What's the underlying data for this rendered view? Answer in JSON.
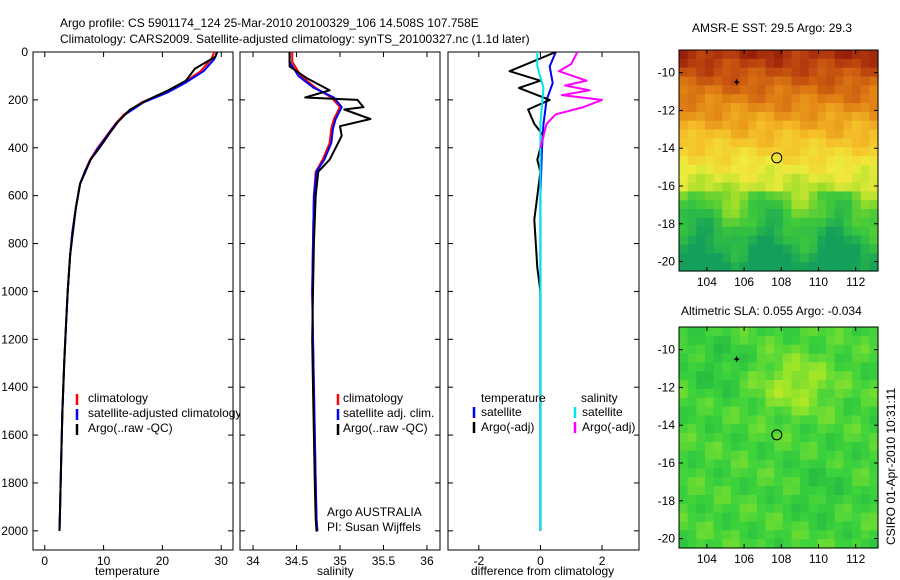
{
  "header": {
    "line1": "Argo profile: CS 5901174_124 25-Mar-2010 20100329_106 14.508S 107.758E",
    "line2": "Climatology: CARS2009. Satellite-adjusted climatology: synTS_20100327.nc (1.1d later)"
  },
  "side_stamp": "CSIRO 01-Apr-2010 10:31:11",
  "colors": {
    "climatology": "#ff0000",
    "satellite": "#0000ff",
    "argo": "#000000",
    "salinity_satellite": "#00e5ee",
    "salinity_argo": "#ff00ff"
  },
  "chart_data": [
    {
      "type": "line",
      "name": "temperature-panel",
      "xlabel": "temperature",
      "ylabel": "",
      "xlim": [
        -2,
        32
      ],
      "ylim": [
        2080,
        0
      ],
      "xticks": [
        0,
        10,
        20,
        30
      ],
      "yticks": [
        0,
        200,
        400,
        600,
        800,
        1000,
        1200,
        1400,
        1600,
        1800,
        2000
      ],
      "legend": [
        "climatology",
        "satellite-adjusted climatology",
        "Argo(..raw -QC)"
      ],
      "series": [
        {
          "name": "climatology",
          "color": "#ff0000",
          "x": [
            28.8,
            28.3,
            26.5,
            23.5,
            20.5,
            16.5,
            13.5,
            12.0,
            10.5,
            9.0,
            7.7,
            6.8,
            6.0,
            5.3,
            4.7,
            4.3,
            3.9,
            3.6,
            3.3,
            3.0,
            2.8,
            2.6,
            2.5
          ],
          "y": [
            0,
            30,
            80,
            130,
            170,
            210,
            260,
            300,
            350,
            400,
            450,
            500,
            550,
            650,
            750,
            850,
            1000,
            1150,
            1300,
            1500,
            1700,
            1900,
            2000
          ]
        },
        {
          "name": "satellite-adjusted climatology",
          "color": "#0000ff",
          "x": [
            29.3,
            28.8,
            27.0,
            23.8,
            20.8,
            16.8,
            13.7,
            12.1,
            10.6,
            9.1,
            7.8,
            6.8,
            6.0,
            5.3,
            4.7,
            4.3,
            3.9,
            3.6,
            3.3,
            3.0,
            2.8,
            2.6,
            2.5
          ],
          "y": [
            0,
            30,
            80,
            130,
            170,
            210,
            260,
            300,
            350,
            400,
            450,
            500,
            550,
            650,
            750,
            850,
            1000,
            1150,
            1300,
            1500,
            1700,
            1900,
            2000
          ]
        },
        {
          "name": "Argo(..raw -QC)",
          "color": "#000000",
          "x": [
            29.3,
            29.0,
            25.5,
            24.0,
            21.0,
            17.5,
            14.5,
            12.5,
            11.0,
            9.3,
            7.8,
            6.9,
            6.0,
            5.3,
            4.8,
            4.3,
            3.9,
            3.6,
            3.3,
            3.0,
            2.8,
            2.6,
            2.5
          ],
          "y": [
            0,
            20,
            70,
            120,
            160,
            200,
            240,
            290,
            340,
            400,
            450,
            500,
            550,
            650,
            750,
            850,
            1000,
            1150,
            1300,
            1500,
            1700,
            1900,
            2000
          ]
        }
      ]
    },
    {
      "type": "line",
      "name": "salinity-panel",
      "xlabel": "salinity",
      "xlim": [
        33.85,
        36.15
      ],
      "ylim": [
        2080,
        0
      ],
      "xticks": [
        34,
        34.5,
        35,
        35.5,
        36
      ],
      "xtick_labels": [
        "34",
        "34.5",
        "35",
        "35.5",
        "36"
      ],
      "legend": [
        "climatology",
        "satellite adj. clim.",
        "Argo(..raw -QC)"
      ],
      "annotation": [
        "Argo AUSTRALIA",
        "PI: Susan Wijffels"
      ],
      "series": [
        {
          "name": "climatology",
          "color": "#ff0000",
          "x": [
            34.45,
            34.45,
            34.55,
            34.72,
            34.9,
            35.0,
            34.93,
            34.9,
            34.88,
            34.8,
            34.72,
            34.7,
            34.69,
            34.68,
            34.69,
            34.7,
            34.71,
            34.72,
            34.73,
            34.74
          ],
          "y": [
            0,
            40,
            100,
            150,
            190,
            230,
            280,
            320,
            380,
            450,
            500,
            600,
            800,
            1000,
            1200,
            1400,
            1600,
            1800,
            1950,
            2000
          ]
        },
        {
          "name": "satellite adj. clim.",
          "color": "#0000ff",
          "x": [
            34.42,
            34.42,
            34.52,
            34.7,
            34.93,
            35.02,
            34.95,
            34.92,
            34.9,
            34.82,
            34.73,
            34.7,
            34.69,
            34.68,
            34.69,
            34.7,
            34.71,
            34.72,
            34.73,
            34.74
          ],
          "y": [
            0,
            40,
            100,
            150,
            190,
            230,
            280,
            320,
            380,
            450,
            500,
            600,
            800,
            1000,
            1200,
            1400,
            1600,
            1800,
            1950,
            2000
          ]
        },
        {
          "name": "Argo(..raw -QC)",
          "color": "#000000",
          "x": [
            34.42,
            34.42,
            34.62,
            34.88,
            34.6,
            35.2,
            35.27,
            35.05,
            35.35,
            35.0,
            35.02,
            34.95,
            34.88,
            34.75,
            34.72,
            34.7,
            34.69,
            34.68,
            34.69,
            34.7,
            34.71,
            34.72,
            34.73,
            34.74
          ],
          "y": [
            0,
            60,
            110,
            160,
            190,
            200,
            230,
            240,
            280,
            310,
            350,
            400,
            450,
            500,
            600,
            800,
            1000,
            1200,
            1400,
            1600,
            1800,
            1950,
            2000,
            2000
          ]
        }
      ]
    },
    {
      "type": "line",
      "name": "difference-panel",
      "xlabel": "difference from climatology",
      "xlim": [
        -3,
        3.2
      ],
      "ylim": [
        2080,
        0
      ],
      "xticks": [
        -2,
        0,
        2
      ],
      "legend_left": {
        "title": "temperature",
        "items": [
          "satellite",
          "Argo(-adj)"
        ]
      },
      "legend_right": {
        "title": "salinity",
        "items": [
          "satellite",
          "Argo(-adj)"
        ]
      },
      "series": [
        {
          "name": "temperature satellite",
          "color": "#0000ff",
          "x": [
            0.5,
            0.3,
            0.4,
            0.2,
            0.1,
            0.05,
            0.0,
            0.0,
            0.0,
            0.0,
            0.0
          ],
          "y": [
            0,
            60,
            130,
            200,
            300,
            400,
            600,
            900,
            1200,
            1600,
            2000
          ]
        },
        {
          "name": "temperature Argo(-adj)",
          "color": "#000000",
          "x": [
            0.5,
            -1.0,
            0.0,
            -0.7,
            0.3,
            -0.4,
            -0.2,
            0.1,
            -0.1,
            0.0,
            -0.2,
            -0.1,
            0.0,
            0.0,
            0.0,
            0.0,
            0.0
          ],
          "y": [
            0,
            80,
            120,
            150,
            200,
            240,
            300,
            350,
            450,
            500,
            700,
            900,
            1000,
            1200,
            1400,
            1700,
            2000
          ]
        },
        {
          "name": "salinity satellite",
          "color": "#00e5ee",
          "x": [
            -0.1,
            -0.1,
            0.1,
            0.0,
            0.0,
            0.0,
            0.0
          ],
          "y": [
            0,
            60,
            150,
            300,
            600,
            1000,
            2000
          ]
        },
        {
          "name": "salinity Argo(-adj)",
          "color": "#ff00ff",
          "x": [
            1.2,
            1.0,
            0.6,
            1.5,
            0.8,
            1.6,
            0.7,
            2.0,
            1.4,
            0.5,
            0.2,
            0.0
          ],
          "y": [
            0,
            50,
            80,
            120,
            140,
            160,
            180,
            200,
            230,
            260,
            300,
            400
          ]
        }
      ]
    },
    {
      "type": "heatmap",
      "name": "sst-map",
      "title": "AMSR-E SST: 29.5 Argo: 29.3",
      "xlim": [
        102.5,
        113.2
      ],
      "ylim": [
        -20.5,
        -8.8
      ],
      "xticks": [
        104,
        106,
        108,
        110,
        112
      ],
      "yticks": [
        -10,
        -12,
        -14,
        -16,
        -18,
        -20
      ],
      "profile_marker": {
        "lon": 107.758,
        "lat": -14.508
      },
      "prior_marker": {
        "lon": 105.6,
        "lat": -10.5
      }
    },
    {
      "type": "heatmap",
      "name": "sla-map",
      "title": "Altimetric SLA: 0.055 Argo: -0.034",
      "xlim": [
        102.5,
        113.2
      ],
      "ylim": [
        -20.5,
        -8.8
      ],
      "xticks": [
        104,
        106,
        108,
        110,
        112
      ],
      "yticks": [
        -10,
        -12,
        -14,
        -16,
        -18,
        -20
      ],
      "profile_marker": {
        "lon": 107.758,
        "lat": -14.508
      },
      "prior_marker": {
        "lon": 105.6,
        "lat": -10.5
      }
    }
  ]
}
